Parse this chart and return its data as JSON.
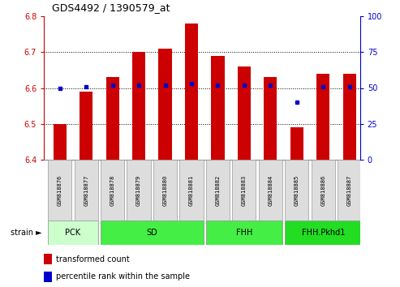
{
  "title": "GDS4492 / 1390579_at",
  "samples": [
    "GSM818876",
    "GSM818877",
    "GSM818878",
    "GSM818879",
    "GSM818880",
    "GSM818881",
    "GSM818882",
    "GSM818883",
    "GSM818884",
    "GSM818885",
    "GSM818886",
    "GSM818887"
  ],
  "transformed_count": [
    6.5,
    6.59,
    6.63,
    6.7,
    6.71,
    6.78,
    6.69,
    6.66,
    6.63,
    6.49,
    6.64,
    6.64
  ],
  "percentile_rank": [
    50,
    51,
    52,
    52,
    52,
    53,
    52,
    52,
    52,
    40,
    51,
    51
  ],
  "ylim_left": [
    6.4,
    6.8
  ],
  "ylim_right": [
    0,
    100
  ],
  "yticks_left": [
    6.4,
    6.5,
    6.6,
    6.7,
    6.8
  ],
  "yticks_right": [
    0,
    25,
    50,
    75,
    100
  ],
  "bar_color": "#cc0000",
  "dot_color": "#0000cc",
  "bar_bottom": 6.4,
  "group_defs": [
    {
      "label": "PCK",
      "indices": [
        0,
        1
      ],
      "color": "#ccffcc"
    },
    {
      "label": "SD",
      "indices": [
        2,
        3,
        4,
        5
      ],
      "color": "#44ee44"
    },
    {
      "label": "FHH",
      "indices": [
        6,
        7,
        8
      ],
      "color": "#44ee44"
    },
    {
      "label": "FHH.Pkhd1",
      "indices": [
        9,
        10,
        11
      ],
      "color": "#22dd22"
    }
  ],
  "sample_box_color": "#dddddd",
  "legend_bar_label": "transformed count",
  "legend_dot_label": "percentile rank within the sample",
  "bar_width": 0.5,
  "xlim": [
    -0.6,
    11.4
  ]
}
